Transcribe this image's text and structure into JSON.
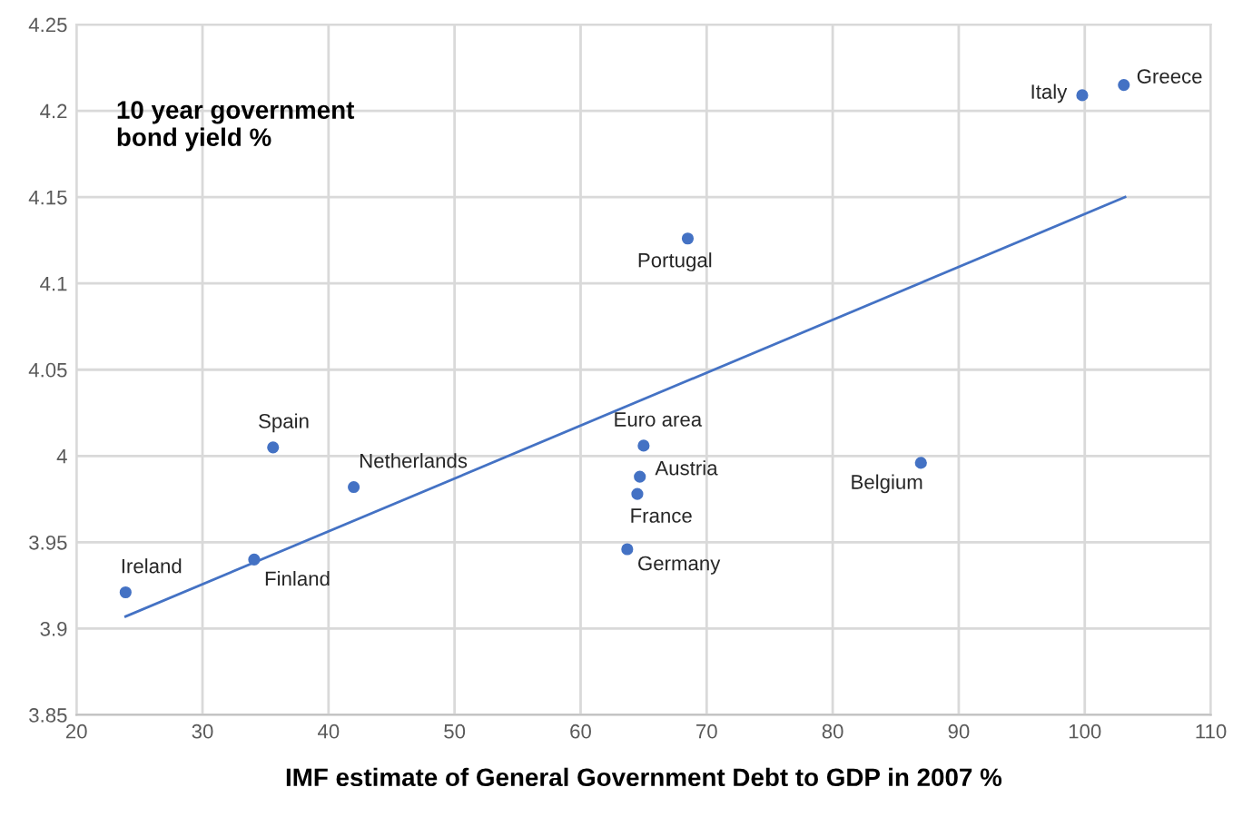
{
  "chart_data": {
    "type": "scatter",
    "title": "10 year government\nbond yield %",
    "xlabel": "IMF estimate of General Government Debt to GDP in 2007 %",
    "xlim": [
      20,
      110
    ],
    "xticks": [
      20,
      30,
      40,
      50,
      60,
      70,
      80,
      90,
      100,
      110
    ],
    "ylim": [
      3.85,
      4.25
    ],
    "yticks": [
      3.85,
      3.9,
      3.95,
      4,
      4.05,
      4.1,
      4.15,
      4.2,
      4.25
    ],
    "grid": true,
    "legend": false,
    "series": [
      {
        "marker": "circle",
        "color": "#4472c4",
        "x": [
          23.9,
          34.1,
          35.6,
          42.0,
          65.0,
          64.7,
          64.5,
          63.7,
          68.5,
          87.0,
          99.8,
          103.1
        ],
        "values": [
          3.921,
          3.94,
          4.005,
          3.982,
          4.006,
          3.988,
          3.978,
          3.946,
          4.126,
          3.996,
          4.209,
          4.215
        ]
      },
      {
        "type": "line",
        "color": "#4472c4",
        "x": [
          23.9,
          103.2
        ],
        "values": [
          3.907,
          4.15
        ]
      }
    ],
    "annotations": [
      {
        "text": "Ireland",
        "x": 23.9,
        "y": 3.921
      },
      {
        "text": "Finland",
        "x": 34.1,
        "y": 3.94
      },
      {
        "text": "Spain",
        "x": 35.6,
        "y": 4.005
      },
      {
        "text": "Netherlands",
        "x": 42.0,
        "y": 3.982
      },
      {
        "text": "Euro area",
        "x": 65.0,
        "y": 4.006
      },
      {
        "text": "Austria",
        "x": 64.7,
        "y": 3.988
      },
      {
        "text": "France",
        "x": 64.5,
        "y": 3.978
      },
      {
        "text": "Germany",
        "x": 63.7,
        "y": 3.946
      },
      {
        "text": "Portugal",
        "x": 68.5,
        "y": 4.126
      },
      {
        "text": "Belgium",
        "x": 87.0,
        "y": 3.996
      },
      {
        "text": "Italy",
        "x": 99.8,
        "y": 4.209
      },
      {
        "text": "Greece",
        "x": 103.1,
        "y": 4.215
      }
    ]
  }
}
